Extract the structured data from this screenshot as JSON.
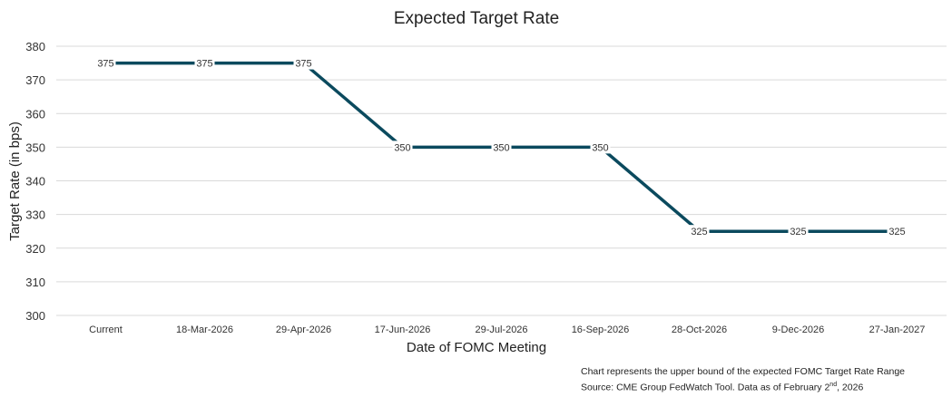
{
  "chart_data": {
    "type": "line",
    "title": "Expected Target Rate",
    "xlabel": "Date of FOMC Meeting",
    "ylabel": "Target Rate (in bps)",
    "categories": [
      "Current",
      "18-Mar-2026",
      "29-Apr-2026",
      "17-Jun-2026",
      "29-Jul-2026",
      "16-Sep-2026",
      "28-Oct-2026",
      "9-Dec-2026",
      "27-Jan-2027"
    ],
    "values": [
      375,
      375,
      375,
      350,
      350,
      350,
      325,
      325,
      325
    ],
    "ylim": [
      300,
      380
    ],
    "yticks": [
      300,
      310,
      320,
      330,
      340,
      350,
      360,
      370,
      380
    ],
    "grid": true,
    "data_labels": true,
    "line_color": "#0b4a5e"
  },
  "notes": {
    "line1": "Chart represents the upper bound of the expected FOMC Target Rate Range",
    "line2_prefix": "Source: CME Group FedWatch Tool. Data as of February 2",
    "line2_sup": "nd",
    "line2_suffix": ", 2026"
  }
}
